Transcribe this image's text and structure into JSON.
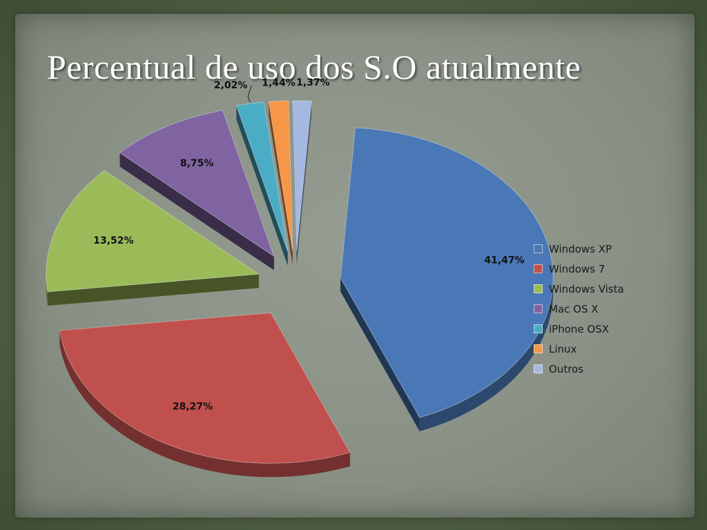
{
  "slide": {
    "title": "Percentual de uso dos S.O atualmente"
  },
  "chart_data": {
    "type": "pie",
    "style": "3d-exploded",
    "categories": [
      "Windows XP",
      "Windows 7",
      "Windows Vista",
      "Mac OS X",
      "iPhone OSX",
      "Linux",
      "Outros"
    ],
    "values": [
      41.47,
      28.27,
      13.52,
      8.75,
      2.02,
      1.44,
      1.37
    ],
    "data_labels": [
      "41,47%",
      "28,27%",
      "13,52%",
      "8,75%",
      "2,02%",
      "1,44%",
      "1,37%"
    ],
    "colors": [
      "#4a78b6",
      "#c0504d",
      "#9bbb59",
      "#8064a2",
      "#4bacc6",
      "#f79646",
      "#a5b8e0"
    ],
    "legend_position": "right"
  }
}
